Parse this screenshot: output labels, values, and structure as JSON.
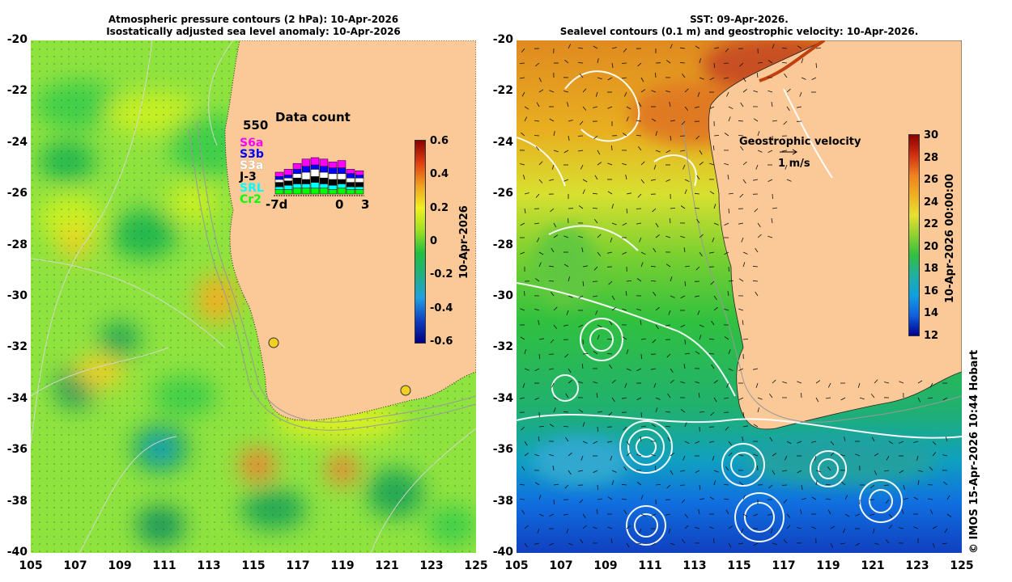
{
  "left_panel": {
    "title_line1": "Atmospheric pressure contours (2 hPa): 10-Apr-2026",
    "title_line2": "Isostatically adjusted sea level anomaly: 10-Apr-2026",
    "colorbar": {
      "ticks": [
        "0.6",
        "0.4",
        "0.2",
        "0",
        "-0.2",
        "-0.4",
        "-0.6"
      ],
      "date_label": "10-Apr-2026"
    },
    "data_count": {
      "title": "Data count",
      "max_label": "550",
      "x_labels": [
        "-7d",
        "0",
        "3"
      ],
      "missions": [
        {
          "name": "S6a",
          "color": "#ff00ff"
        },
        {
          "name": "S3b",
          "color": "#0000ff"
        },
        {
          "name": "S3a",
          "color": "#ffffff"
        },
        {
          "name": "J-3",
          "color": "#000000"
        },
        {
          "name": "SRL",
          "color": "#00ffff"
        },
        {
          "name": "Cr2",
          "color": "#00ff00"
        }
      ]
    }
  },
  "right_panel": {
    "title_line1": "SST: 09-Apr-2026.",
    "title_line2": "Sealevel contours (0.1 m) and geostrophic velocity: 10-Apr-2026.",
    "colorbar": {
      "ticks": [
        "30",
        "28",
        "26",
        "24",
        "22",
        "20",
        "18",
        "16",
        "14",
        "12"
      ],
      "date_label": "10-Apr-2026 00:00:00"
    },
    "velocity_legend": {
      "title": "Geostrophic velocity",
      "scale": "1 m/s"
    },
    "copyright": "© IMOS 15-Apr-2026 10:44 Hobart"
  },
  "axes": {
    "y_ticks": [
      "-20",
      "-22",
      "-24",
      "-26",
      "-28",
      "-30",
      "-32",
      "-34",
      "-36",
      "-38",
      "-40"
    ],
    "x_ticks": [
      "105",
      "107",
      "109",
      "111",
      "113",
      "115",
      "117",
      "119",
      "121",
      "123",
      "125"
    ]
  }
}
